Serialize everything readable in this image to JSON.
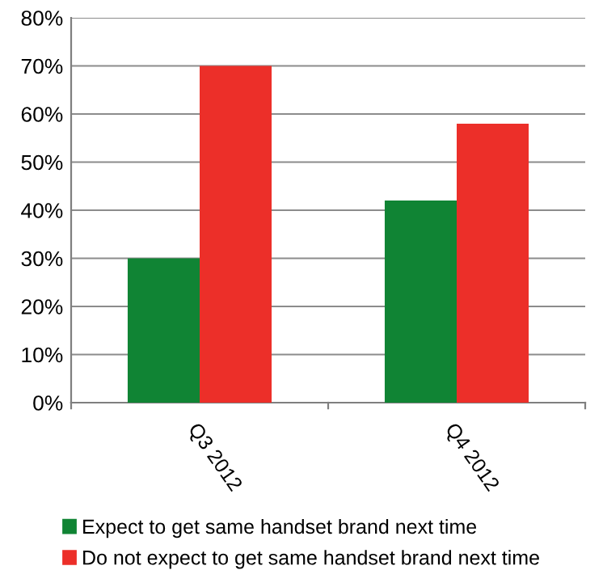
{
  "chart_data": {
    "type": "bar",
    "categories": [
      "Q3 2012",
      "Q4 2012"
    ],
    "series": [
      {
        "name": "Expect to get same handset brand next time",
        "color": "#108434",
        "values": [
          30,
          42
        ]
      },
      {
        "name": "Do not expect to get same handset brand next time",
        "color": "#ec2f29",
        "values": [
          70,
          58
        ]
      }
    ],
    "ylim": [
      0,
      80
    ],
    "yticks": [
      {
        "value": 0,
        "label": "0%"
      },
      {
        "value": 10,
        "label": "10%"
      },
      {
        "value": 20,
        "label": "20%"
      },
      {
        "value": 30,
        "label": "30%"
      },
      {
        "value": 40,
        "label": "40%"
      },
      {
        "value": 50,
        "label": "50%"
      },
      {
        "value": 60,
        "label": "60%"
      },
      {
        "value": 70,
        "label": "70%"
      },
      {
        "value": 80,
        "label": "80%"
      }
    ],
    "grid": "y",
    "legend": "bottom"
  }
}
